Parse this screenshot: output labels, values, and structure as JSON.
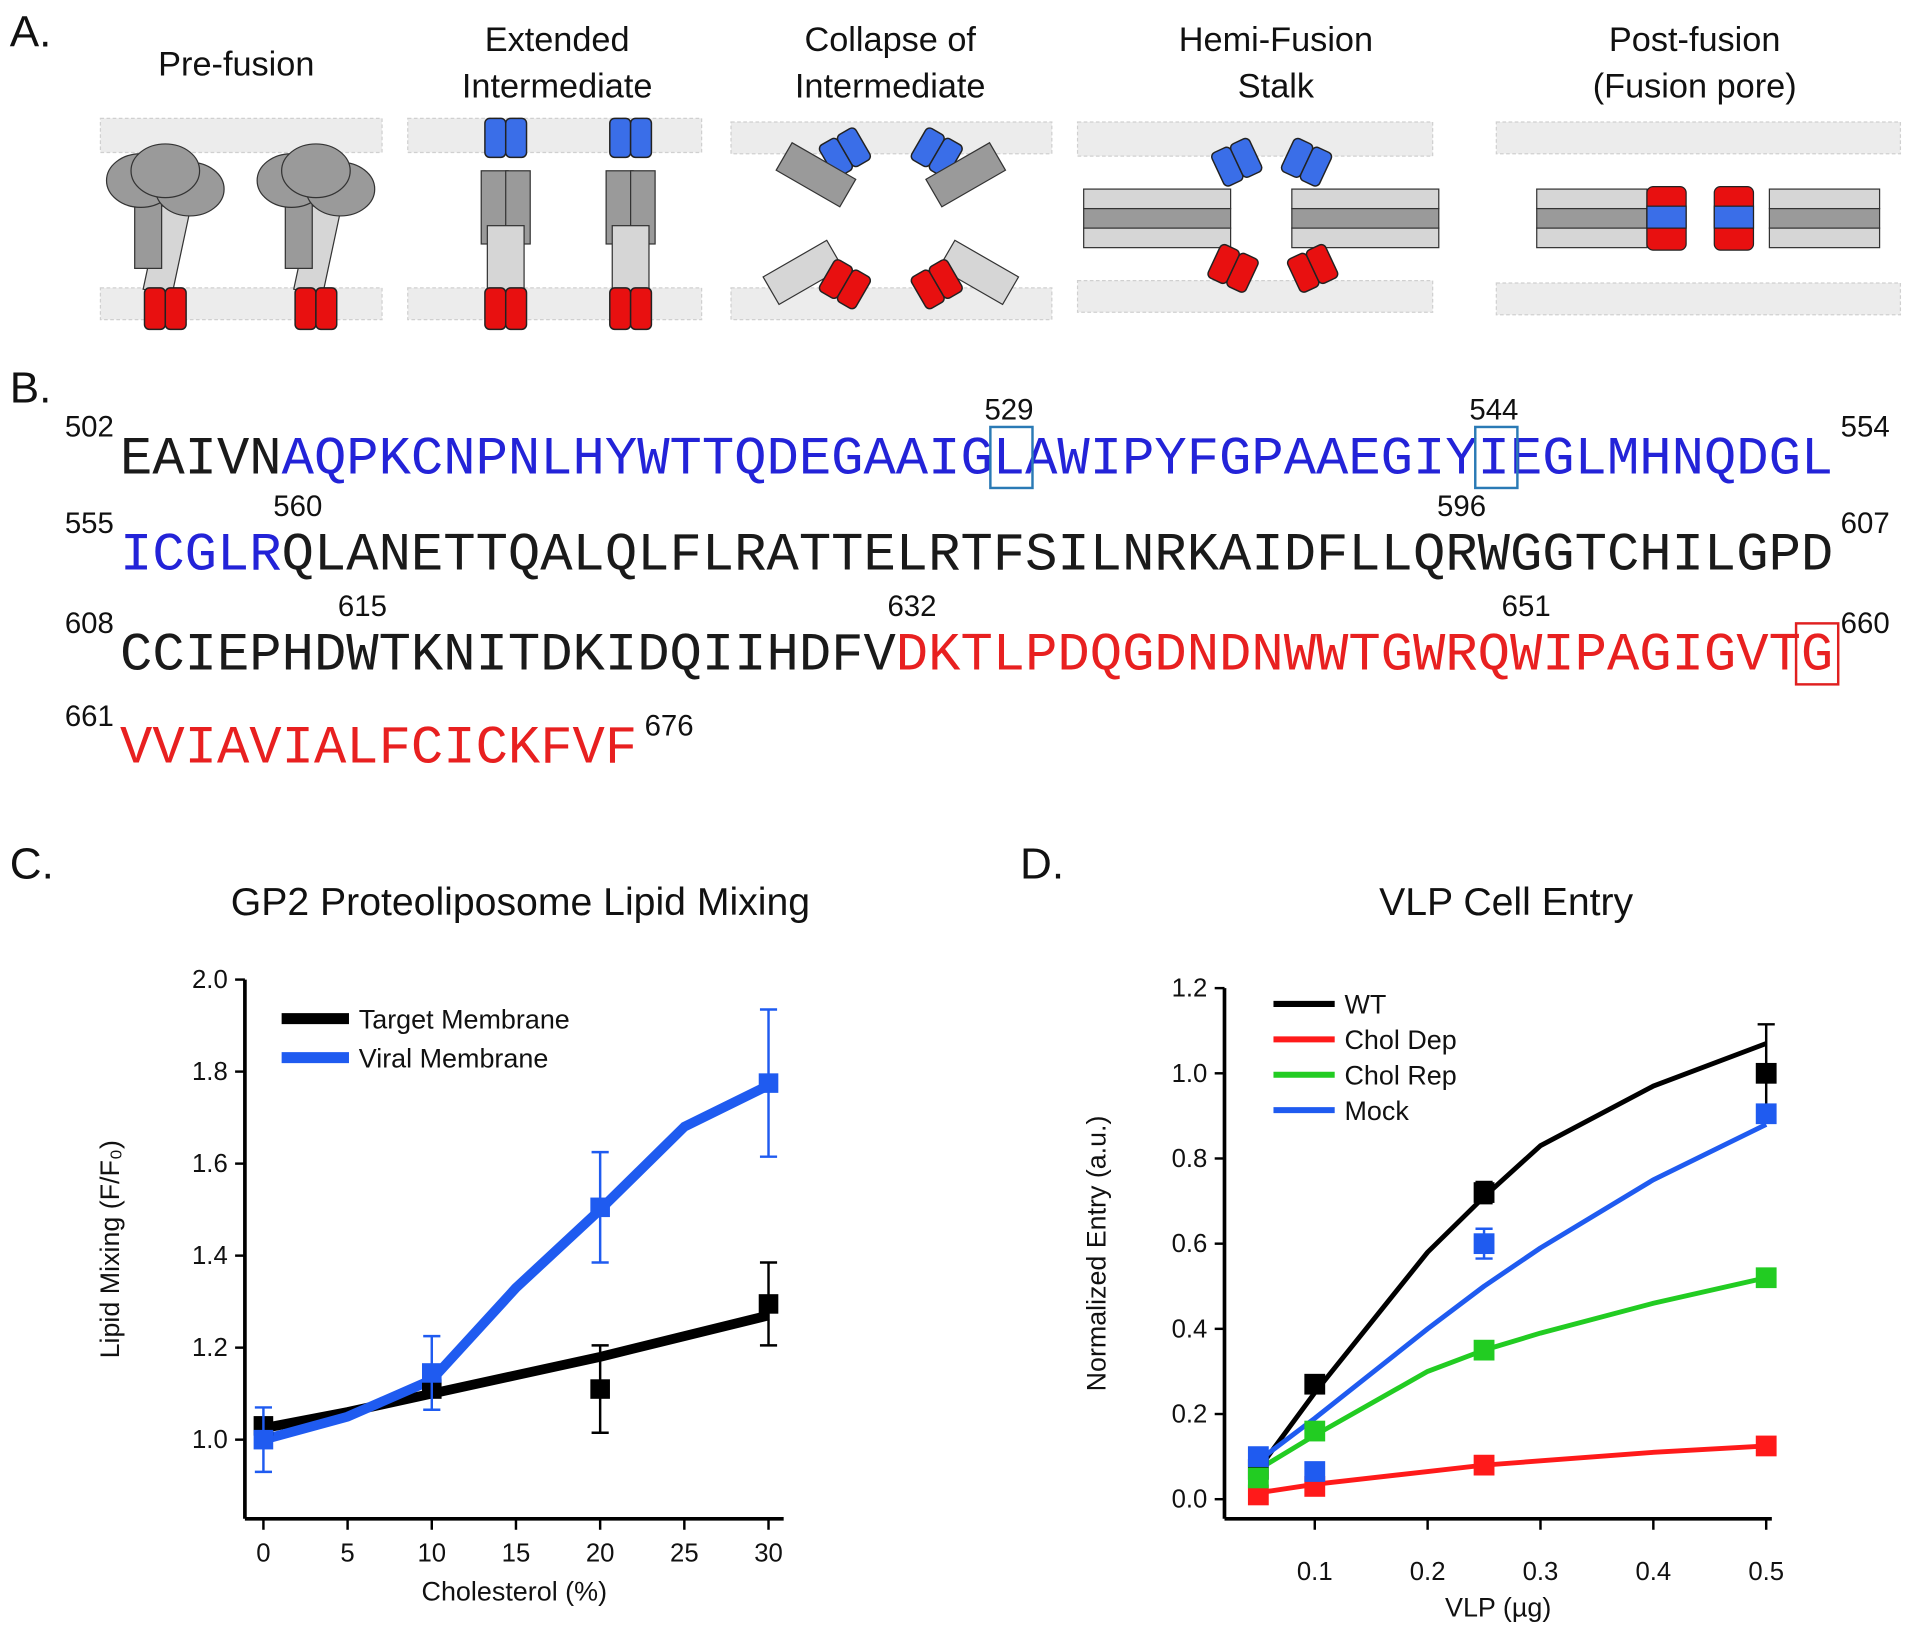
{
  "panels": [
    "A.",
    "B.",
    "C.",
    "D."
  ],
  "diagram": {
    "stages": [
      [
        "Pre-fusion"
      ],
      [
        "Extended",
        "Intermediate"
      ],
      [
        "Collapse of",
        "Intermediate"
      ],
      [
        "Hemi-Fusion",
        "Stalk"
      ],
      [
        "Post-fusion",
        "(Fusion pore)"
      ]
    ]
  },
  "sequence": {
    "lines": [
      {
        "start": "502",
        "end": "554",
        "segments": [
          {
            "text": "EAIVN",
            "color": "#1a1a1a"
          },
          {
            "text": "AQPKCNPNLHYWTTQDEGAAIGLAWIPYFGPAAEGIYIEGLMHNQDGL",
            "color": "#2323d8"
          }
        ],
        "annotations": [
          {
            "label": "529",
            "box": "#2a7ab5"
          },
          {
            "label": "544",
            "box": "#2a7ab5"
          }
        ]
      },
      {
        "start": "555",
        "end": "607",
        "segments": [
          {
            "text": "ICGLR",
            "color": "#2323d8"
          },
          {
            "text": "QLANETTQALQLFLRATTELRTFSILNRKAIDFLLQRWGGTCHILGPD",
            "color": "#1a1a1a"
          }
        ],
        "annotations": [
          {
            "label": "560"
          },
          {
            "label": "596"
          }
        ]
      },
      {
        "start": "608",
        "end": "660",
        "end_box": "#e02020",
        "segments": [
          {
            "text": "CCIEPHDWTKNITDKIDQIIHDFV",
            "color": "#1a1a1a"
          },
          {
            "text": "DKTLPDQGDNDNWWTGWRQWIPAGIGVTG",
            "color": "#e82020"
          }
        ],
        "annotations": [
          {
            "label": "615"
          },
          {
            "label": "632"
          },
          {
            "label": "651"
          }
        ]
      },
      {
        "start": "661",
        "end": "676",
        "segments": [
          {
            "text": "VVIAVIALFCICKFVF",
            "color": "#e82020"
          }
        ],
        "annotations": []
      }
    ]
  },
  "chart_data": [
    {
      "type": "line",
      "title": "GP2 Proteoliposome Lipid Mixing",
      "x_label": "Cholesterol (%)",
      "y_label": "Lipid Mixing (F/F₀)",
      "x": [
        0,
        10,
        20,
        30
      ],
      "fit_x": [
        0,
        5,
        10,
        15,
        20,
        25,
        30
      ],
      "series": [
        {
          "name": "Target Membrane",
          "color": "#000000",
          "values": [
            1.03,
            1.11,
            1.11,
            1.295
          ],
          "errors": [
            null,
            null,
            0.095,
            0.09
          ],
          "fit": [
            1.025,
            1.06,
            1.1,
            1.14,
            1.18,
            1.225,
            1.27
          ]
        },
        {
          "name": "Viral Membrane",
          "color": "#1f5bf0",
          "values": [
            1.0,
            1.145,
            1.505,
            1.775
          ],
          "errors": [
            0.07,
            0.08,
            0.12,
            0.16
          ],
          "fit": [
            1.0,
            1.05,
            1.13,
            1.33,
            1.5,
            1.68,
            1.77
          ]
        }
      ],
      "xlim": [
        -1.1,
        30.9
      ],
      "xticks": [
        0,
        5,
        10,
        15,
        20,
        25,
        30
      ],
      "ylim": [
        0.828,
        2.0
      ],
      "yticks": [
        {
          "value": 1.0,
          "label": "1.0"
        },
        1.2,
        1.4,
        1.6,
        1.8,
        {
          "value": 2.0,
          "label": "2.0"
        }
      ],
      "legend": "top-left"
    },
    {
      "type": "line",
      "title": "VLP Cell Entry",
      "x_label": "VLP (µg)",
      "y_label": "Normalized Entry (a.u.)",
      "x": [
        0.05,
        0.1,
        0.25,
        0.5
      ],
      "fit_x": [
        0.05,
        0.1,
        0.2,
        0.25,
        0.3,
        0.4,
        0.5
      ],
      "series": [
        {
          "name": "WT",
          "color": "#000000",
          "values": [
            0.07,
            0.27,
            0.72,
            1.0
          ],
          "errors": [
            null,
            null,
            0.025,
            0.115
          ],
          "fit": [
            0.07,
            0.25,
            0.58,
            0.71,
            0.83,
            0.97,
            1.07
          ]
        },
        {
          "name": "Chol Dep",
          "color": "#ff1a1a",
          "values": [
            0.01,
            0.03,
            0.08,
            0.125
          ],
          "errors": [
            null,
            null,
            null,
            null
          ],
          "fit": [
            0.015,
            0.035,
            0.065,
            0.08,
            0.09,
            0.11,
            0.125
          ]
        },
        {
          "name": "Chol Rep",
          "color": "#22cc22",
          "values": [
            0.05,
            0.16,
            0.35,
            0.52
          ],
          "errors": [
            null,
            null,
            null,
            null
          ],
          "fit": [
            0.07,
            0.15,
            0.3,
            0.35,
            0.39,
            0.46,
            0.52
          ]
        },
        {
          "name": "Mock",
          "color": "#1f5bf0",
          "values": [
            0.1,
            0.065,
            0.6,
            0.905
          ],
          "errors": [
            null,
            null,
            0.035,
            null
          ],
          "fit": [
            0.09,
            0.19,
            0.4,
            0.5,
            0.59,
            0.75,
            0.88
          ]
        }
      ],
      "xlim": [
        0.02,
        0.505
      ],
      "xticks": [
        0.1,
        0.2,
        0.3,
        0.4,
        0.5
      ],
      "ylim": [
        -0.046,
        1.2
      ],
      "yticks": [
        {
          "value": 0.0,
          "label": "0.0"
        },
        0.2,
        0.4,
        0.6,
        0.8,
        {
          "value": 1.0,
          "label": "1.0"
        },
        1.2
      ],
      "legend": "top-left"
    }
  ]
}
